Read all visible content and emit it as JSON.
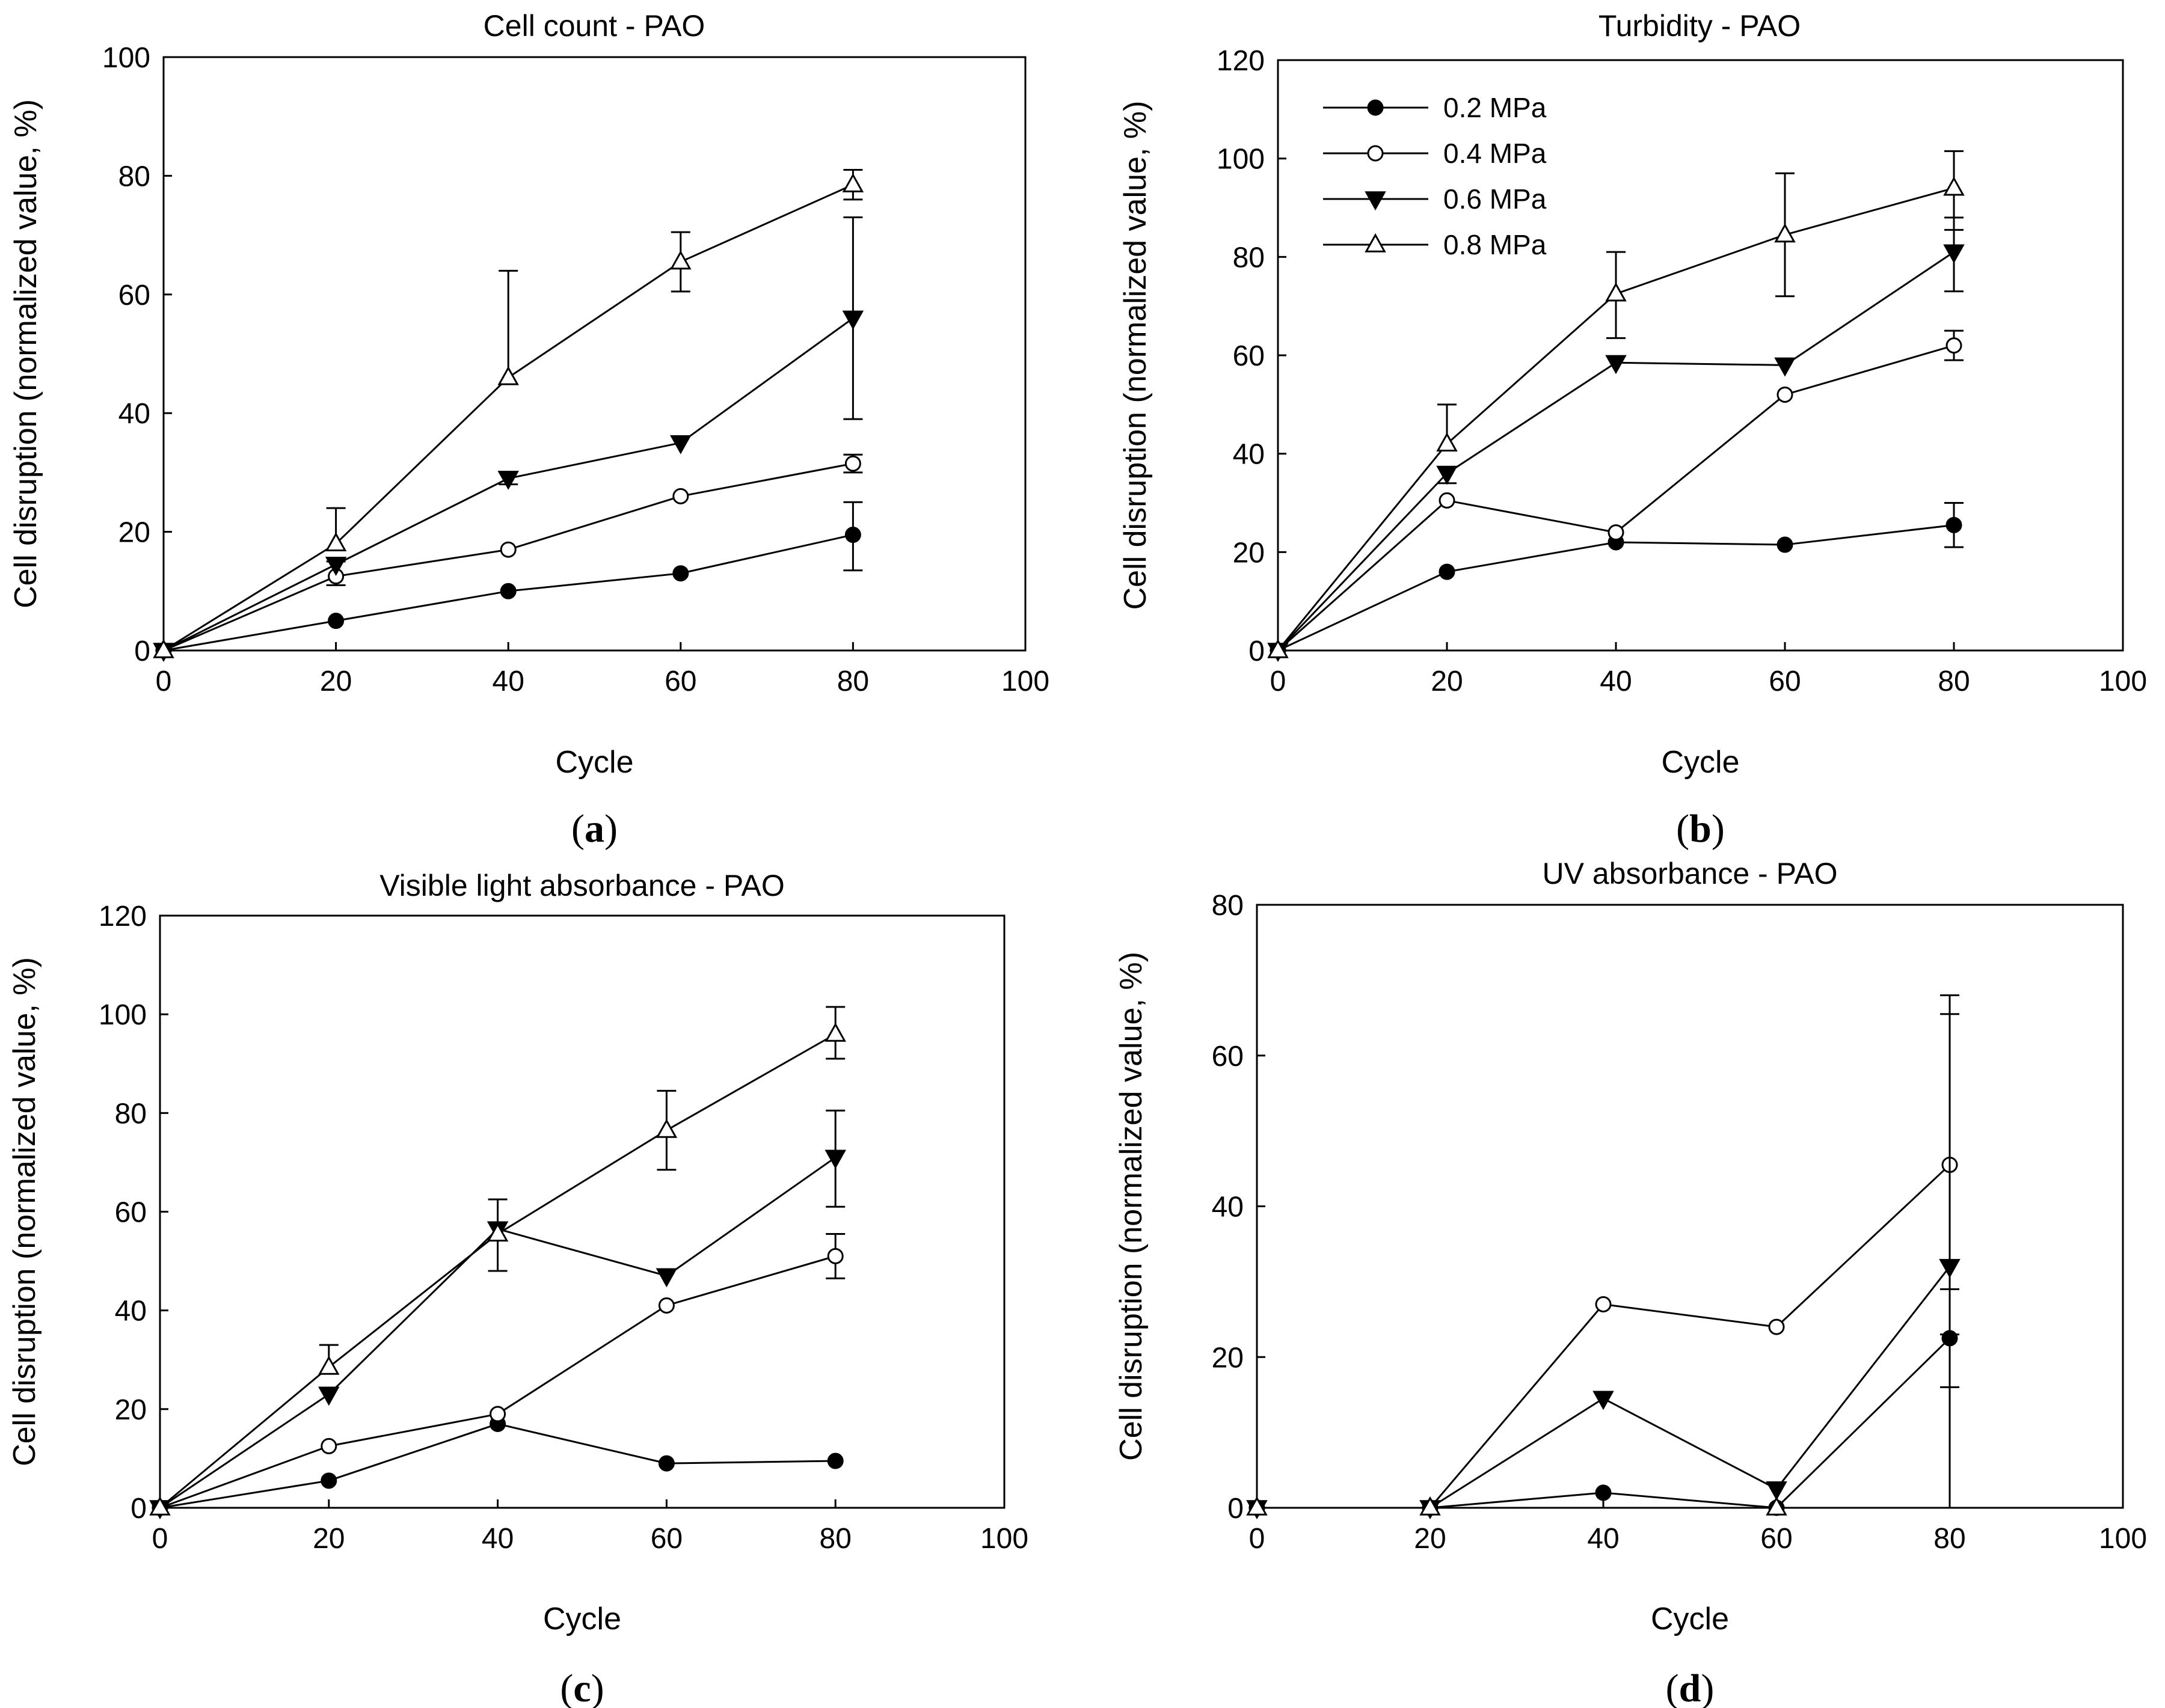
{
  "chart_data": [
    {
      "id": "a",
      "type": "line",
      "subfigure_label": "a",
      "title": "Cell count - PAO",
      "xlabel": "Cycle",
      "ylabel": "Cell disruption (normalized value, %)",
      "xlim": [
        0,
        100
      ],
      "ylim": [
        0,
        100
      ],
      "xticks": [
        0,
        20,
        40,
        60,
        80,
        100
      ],
      "yticks": [
        0,
        20,
        40,
        60,
        80,
        100
      ],
      "series": [
        {
          "name": "0.2 MPa",
          "marker": "circle-filled",
          "x": [
            0,
            20,
            40,
            60,
            80
          ],
          "y": [
            0,
            5,
            10,
            13,
            19.5
          ],
          "err_up": [
            null,
            null,
            null,
            null,
            25
          ],
          "err_low": [
            null,
            null,
            null,
            null,
            13.5
          ]
        },
        {
          "name": "0.4 MPa",
          "marker": "circle-open",
          "x": [
            0,
            20,
            40,
            60,
            80
          ],
          "y": [
            0,
            12.5,
            17,
            26,
            31.5
          ],
          "err_up": [
            null,
            15,
            null,
            null,
            33
          ],
          "err_low": [
            null,
            11,
            null,
            null,
            30
          ]
        },
        {
          "name": "0.6 MPa",
          "marker": "triangle-down-filled",
          "x": [
            0,
            20,
            40,
            60,
            80
          ],
          "y": [
            0,
            14.5,
            29,
            35,
            56
          ],
          "err_up": [
            null,
            null,
            null,
            null,
            73
          ],
          "err_low": [
            null,
            null,
            28,
            null,
            39
          ]
        },
        {
          "name": "0.8 MPa",
          "marker": "triangle-up-open",
          "x": [
            0,
            20,
            40,
            60,
            80
          ],
          "y": [
            0,
            18,
            46,
            65.5,
            78.5
          ],
          "err_up": [
            null,
            24,
            64,
            70.5,
            81
          ],
          "err_low": [
            null,
            null,
            null,
            60.5,
            76
          ]
        }
      ]
    },
    {
      "id": "b",
      "type": "line",
      "subfigure_label": "b",
      "title": "Turbidity - PAO",
      "xlabel": "Cycle",
      "ylabel": "Cell disruption (normalized value, %)",
      "xlim": [
        0,
        100
      ],
      "ylim": [
        0,
        120
      ],
      "xticks": [
        0,
        20,
        40,
        60,
        80,
        100
      ],
      "yticks": [
        0,
        20,
        40,
        60,
        80,
        100,
        120
      ],
      "legend": {
        "position": "top-left",
        "entries": [
          "0.2 MPa",
          "0.4 MPa",
          "0.6 MPa",
          "0.8 MPa"
        ]
      },
      "series": [
        {
          "name": "0.2 MPa",
          "marker": "circle-filled",
          "x": [
            0,
            20,
            40,
            60,
            80
          ],
          "y": [
            0,
            16,
            22,
            21.5,
            25.5
          ],
          "err_up": [
            null,
            null,
            null,
            null,
            30
          ],
          "err_low": [
            null,
            null,
            null,
            null,
            21
          ]
        },
        {
          "name": "0.4 MPa",
          "marker": "circle-open",
          "x": [
            0,
            20,
            40,
            60,
            80
          ],
          "y": [
            0,
            30.5,
            24,
            52,
            62
          ],
          "err_up": [
            null,
            null,
            null,
            null,
            65
          ],
          "err_low": [
            null,
            null,
            null,
            null,
            59
          ]
        },
        {
          "name": "0.6 MPa",
          "marker": "triangle-down-filled",
          "x": [
            0,
            20,
            40,
            60,
            80
          ],
          "y": [
            0,
            36,
            58.5,
            58,
            81
          ],
          "err_up": [
            null,
            null,
            null,
            null,
            88
          ],
          "err_low": [
            null,
            34,
            null,
            null,
            73
          ]
        },
        {
          "name": "0.8 MPa",
          "marker": "triangle-up-open",
          "x": [
            0,
            20,
            40,
            60,
            80
          ],
          "y": [
            0,
            42,
            72.5,
            84.5,
            94
          ],
          "err_up": [
            null,
            50,
            81,
            97,
            101.5
          ],
          "err_low": [
            null,
            null,
            63.5,
            72,
            85.5
          ]
        }
      ]
    },
    {
      "id": "c",
      "type": "line",
      "subfigure_label": "c",
      "title": "Visible light absorbance - PAO",
      "xlabel": "Cycle",
      "ylabel": "Cell disruption (normalized value, %)",
      "xlim": [
        0,
        100
      ],
      "ylim": [
        0,
        120
      ],
      "xticks": [
        0,
        20,
        40,
        60,
        80,
        100
      ],
      "yticks": [
        0,
        20,
        40,
        60,
        80,
        100,
        120
      ],
      "series": [
        {
          "name": "0.2 MPa",
          "marker": "circle-filled",
          "x": [
            0,
            20,
            40,
            60,
            80
          ],
          "y": [
            0,
            5.5,
            17,
            9,
            9.5
          ],
          "err_up": [
            null,
            null,
            null,
            null,
            null
          ],
          "err_low": [
            null,
            null,
            null,
            null,
            null
          ]
        },
        {
          "name": "0.4 MPa",
          "marker": "circle-open",
          "x": [
            0,
            20,
            40,
            60,
            80
          ],
          "y": [
            0,
            12.5,
            19,
            41,
            51
          ],
          "err_up": [
            null,
            null,
            null,
            null,
            55.5
          ],
          "err_low": [
            null,
            null,
            null,
            null,
            46.5
          ]
        },
        {
          "name": "0.6 MPa",
          "marker": "triangle-down-filled",
          "x": [
            0,
            20,
            40,
            60,
            80
          ],
          "y": [
            0,
            23,
            56.5,
            47,
            71
          ],
          "err_up": [
            null,
            null,
            null,
            null,
            80.5
          ],
          "err_low": [
            null,
            null,
            null,
            null,
            61
          ]
        },
        {
          "name": "0.8 MPa",
          "marker": "triangle-up-open",
          "x": [
            0,
            20,
            40,
            60,
            80
          ],
          "y": [
            0,
            28.5,
            55.5,
            76.5,
            96
          ],
          "err_up": [
            null,
            33,
            62.5,
            84.5,
            101.5
          ],
          "err_low": [
            null,
            null,
            48,
            68.5,
            91
          ]
        }
      ]
    },
    {
      "id": "d",
      "type": "line",
      "subfigure_label": "d",
      "title": "UV absorbance - PAO",
      "xlabel": "Cycle",
      "ylabel": "Cell disruption (normalized value, %)",
      "xlim": [
        0,
        100
      ],
      "ylim": [
        0,
        80
      ],
      "xticks": [
        0,
        20,
        40,
        60,
        80,
        100
      ],
      "yticks": [
        0,
        20,
        40,
        60,
        80
      ],
      "series": [
        {
          "name": "0.2 MPa",
          "marker": "circle-filled",
          "x": [
            0,
            20,
            40,
            60,
            80
          ],
          "y": [
            0,
            0,
            2,
            0,
            22.5
          ],
          "err_up": [
            null,
            null,
            null,
            null,
            29
          ],
          "err_low": [
            null,
            null,
            null,
            null,
            16
          ]
        },
        {
          "name": "0.4 MPa",
          "marker": "circle-open",
          "x": [
            0,
            20,
            40,
            60,
            80
          ],
          "y": [
            0,
            0,
            27,
            24,
            45.5
          ],
          "err_up": [
            null,
            null,
            null,
            null,
            68
          ],
          "err_low": [
            null,
            null,
            null,
            null,
            23
          ]
        },
        {
          "name": "0.6 MPa",
          "marker": "triangle-down-filled",
          "x": [
            0,
            20,
            40,
            60,
            80
          ],
          "y": [
            0,
            0,
            14.5,
            2.5,
            32
          ],
          "err_up": [
            null,
            null,
            null,
            null,
            65.5
          ],
          "err_low": [
            null,
            null,
            null,
            null,
            0
          ]
        },
        {
          "name": "0.8 MPa",
          "marker": "triangle-up-open",
          "x": [
            0,
            20,
            40,
            60,
            80
          ],
          "y": [
            0,
            0,
            null,
            0,
            null
          ],
          "err_up": [
            null,
            null,
            null,
            null,
            null
          ],
          "err_low": [
            null,
            null,
            null,
            null,
            null
          ]
        }
      ]
    }
  ]
}
